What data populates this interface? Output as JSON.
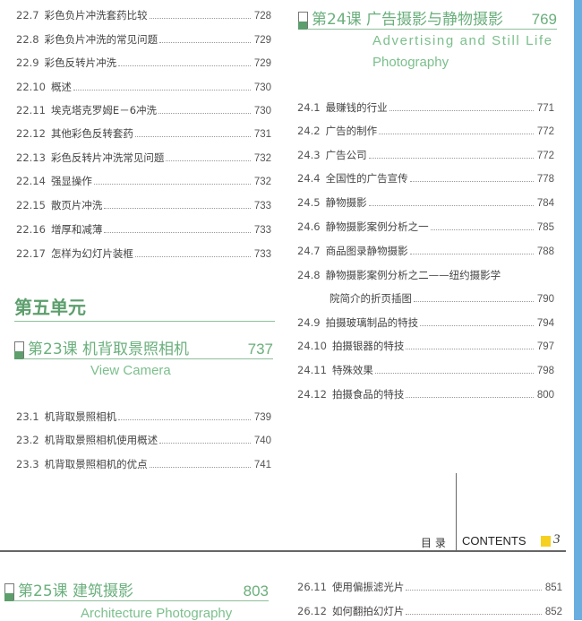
{
  "left_entries_top": [
    {
      "num": "22.7",
      "title": "彩色负片冲洗套药比较",
      "page": "728"
    },
    {
      "num": "22.8",
      "title": "彩色负片冲洗的常见问题",
      "page": "729"
    },
    {
      "num": "22.9",
      "title": "彩色反转片冲洗",
      "page": "729"
    },
    {
      "num": "22.10",
      "title": "概述",
      "page": "730"
    },
    {
      "num": "22.11",
      "title": "埃克塔克罗姆E－6冲洗",
      "page": "730"
    },
    {
      "num": "22.12",
      "title": "其他彩色反转套药",
      "page": "731"
    },
    {
      "num": "22.13",
      "title": "彩色反转片冲洗常见问题",
      "page": "732"
    },
    {
      "num": "22.14",
      "title": "强显操作",
      "page": "732"
    },
    {
      "num": "22.15",
      "title": "散页片冲洗",
      "page": "733"
    },
    {
      "num": "22.16",
      "title": "增厚和减薄",
      "page": "733"
    },
    {
      "num": "22.17",
      "title": "怎样为幻灯片装框",
      "page": "733"
    }
  ],
  "unit_title": "第五单元",
  "lesson23": {
    "title": "第23课  机背取景照相机",
    "page": "737",
    "subtitle": "View Camera",
    "entries": [
      {
        "num": "23.1",
        "title": "机背取景照相机",
        "page": "739"
      },
      {
        "num": "23.2",
        "title": "机背取景照相机使用概述",
        "page": "740"
      },
      {
        "num": "23.3",
        "title": "机背取景照相机的优点",
        "page": "741"
      }
    ]
  },
  "lesson24": {
    "title": "第24课  广告摄影与静物摄影",
    "page": "769",
    "subtitle_line1": "Advertising and Still Life",
    "subtitle_line2": "Photography",
    "entries": [
      {
        "num": "24.1",
        "title": "最赚钱的行业",
        "page": "771"
      },
      {
        "num": "24.2",
        "title": "广告的制作",
        "page": "772"
      },
      {
        "num": "24.3",
        "title": "广告公司",
        "page": "772"
      },
      {
        "num": "24.4",
        "title": "全国性的广告宣传",
        "page": "778"
      },
      {
        "num": "24.5",
        "title": "静物摄影",
        "page": "784"
      },
      {
        "num": "24.6",
        "title": "静物摄影案例分析之一",
        "page": "785"
      },
      {
        "num": "24.7",
        "title": "商品图录静物摄影",
        "page": "788"
      },
      {
        "num": "24.8",
        "title": "静物摄影案例分析之二——纽约摄影学",
        "title_cont": "院简介的折页插图",
        "page": "790"
      },
      {
        "num": "24.9",
        "title": "拍摄玻璃制品的特技",
        "page": "794"
      },
      {
        "num": "24.10",
        "title": "拍摄银器的特技",
        "page": "797"
      },
      {
        "num": "24.11",
        "title": "特殊效果",
        "page": "798"
      },
      {
        "num": "24.12",
        "title": "拍摄食品的特技",
        "page": "800"
      }
    ]
  },
  "footer": {
    "cn": "目 录",
    "en": "CONTENTS",
    "page": "3"
  },
  "lesson25": {
    "title": "第25课  建筑摄影",
    "page": "803",
    "subtitle": "Architecture Photography"
  },
  "right_entries_bottom": [
    {
      "num": "26.11",
      "title": "使用偏振滤光片",
      "page": "851"
    },
    {
      "num": "26.12",
      "title": "如何翻拍幻灯片",
      "page": "852"
    }
  ],
  "colors": {
    "green": "#6aaf7c",
    "blue_edge": "#6aaee0",
    "yellow": "#f5d020"
  }
}
